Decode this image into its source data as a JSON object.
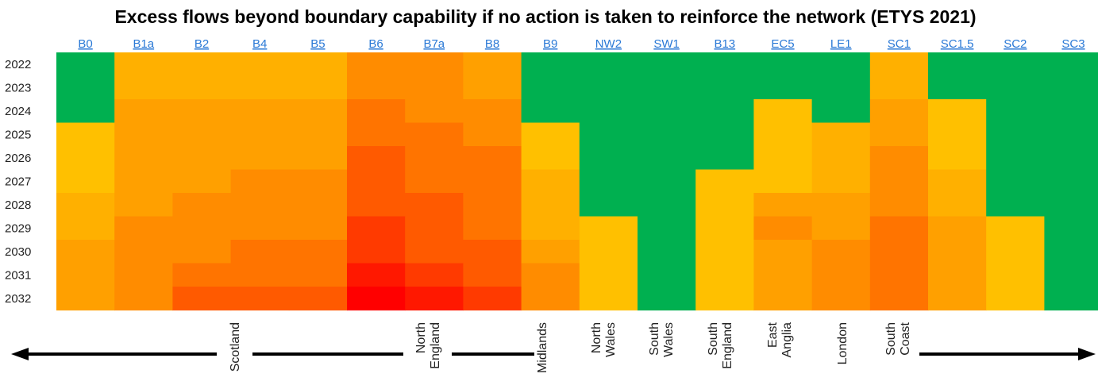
{
  "chart_data": {
    "type": "heatmap",
    "title": "Excess flows beyond boundary capability if no action is taken to reinforce the network (ETYS 2021)",
    "columns": [
      "B0",
      "B1a",
      "B2",
      "B4",
      "B5",
      "B6",
      "B7a",
      "B8",
      "B9",
      "NW2",
      "SW1",
      "B13",
      "EC5",
      "LE1",
      "SC1",
      "SC1.5",
      "SC2",
      "SC3"
    ],
    "rows": [
      "2022",
      "2023",
      "2024",
      "2025",
      "2026",
      "2027",
      "2028",
      "2029",
      "2030",
      "2031",
      "2032"
    ],
    "colors": {
      "green": "#00b050",
      "scale": [
        "#ffc000",
        "#ffb000",
        "#ffa000",
        "#ff8c00",
        "#ff7400",
        "#ff5a00",
        "#ff3a00",
        "#ff1800",
        "#ff0000"
      ]
    },
    "values": [
      [
        -1,
        1,
        1,
        1,
        1,
        3,
        3,
        2,
        -1,
        -1,
        -1,
        -1,
        -1,
        -1,
        1,
        -1,
        -1,
        -1
      ],
      [
        -1,
        1,
        1,
        1,
        1,
        3,
        3,
        2,
        -1,
        -1,
        -1,
        -1,
        -1,
        -1,
        1,
        -1,
        -1,
        -1
      ],
      [
        -1,
        2,
        2,
        2,
        2,
        4,
        3,
        3,
        -1,
        -1,
        -1,
        -1,
        0,
        -1,
        2,
        0,
        -1,
        -1
      ],
      [
        0,
        2,
        2,
        2,
        2,
        4,
        4,
        3,
        0,
        -1,
        -1,
        -1,
        0,
        1,
        2,
        0,
        -1,
        -1
      ],
      [
        0,
        2,
        2,
        2,
        2,
        5,
        4,
        4,
        0,
        -1,
        -1,
        -1,
        0,
        1,
        3,
        0,
        -1,
        -1
      ],
      [
        0,
        2,
        2,
        3,
        3,
        5,
        4,
        4,
        1,
        -1,
        -1,
        0,
        0,
        1,
        3,
        1,
        -1,
        -1
      ],
      [
        1,
        2,
        3,
        3,
        3,
        5,
        5,
        4,
        1,
        -1,
        -1,
        0,
        2,
        2,
        3,
        1,
        -1,
        -1
      ],
      [
        1,
        3,
        3,
        3,
        3,
        6,
        5,
        4,
        1,
        0,
        -1,
        0,
        3,
        2,
        4,
        2,
        0,
        -1
      ],
      [
        2,
        3,
        3,
        4,
        4,
        6,
        5,
        5,
        2,
        0,
        -1,
        0,
        2,
        3,
        4,
        2,
        0,
        -1
      ],
      [
        2,
        3,
        4,
        4,
        4,
        7,
        6,
        5,
        3,
        0,
        -1,
        0,
        2,
        3,
        4,
        2,
        0,
        -1
      ],
      [
        2,
        3,
        5,
        5,
        5,
        8,
        7,
        6,
        3,
        0,
        -1,
        0,
        2,
        3,
        4,
        2,
        0,
        -1
      ]
    ],
    "regions": [
      {
        "lines": [
          "Scotland"
        ]
      },
      {
        "lines": [
          "North",
          "England"
        ]
      },
      {
        "lines": [
          "Midlands"
        ]
      },
      {
        "lines": [
          "North",
          "Wales"
        ]
      },
      {
        "lines": [
          "South",
          "Wales"
        ]
      },
      {
        "lines": [
          "South",
          "England"
        ]
      },
      {
        "lines": [
          "East",
          "Anglia"
        ]
      },
      {
        "lines": [
          "London"
        ]
      },
      {
        "lines": [
          "South",
          "Coast"
        ]
      }
    ]
  }
}
